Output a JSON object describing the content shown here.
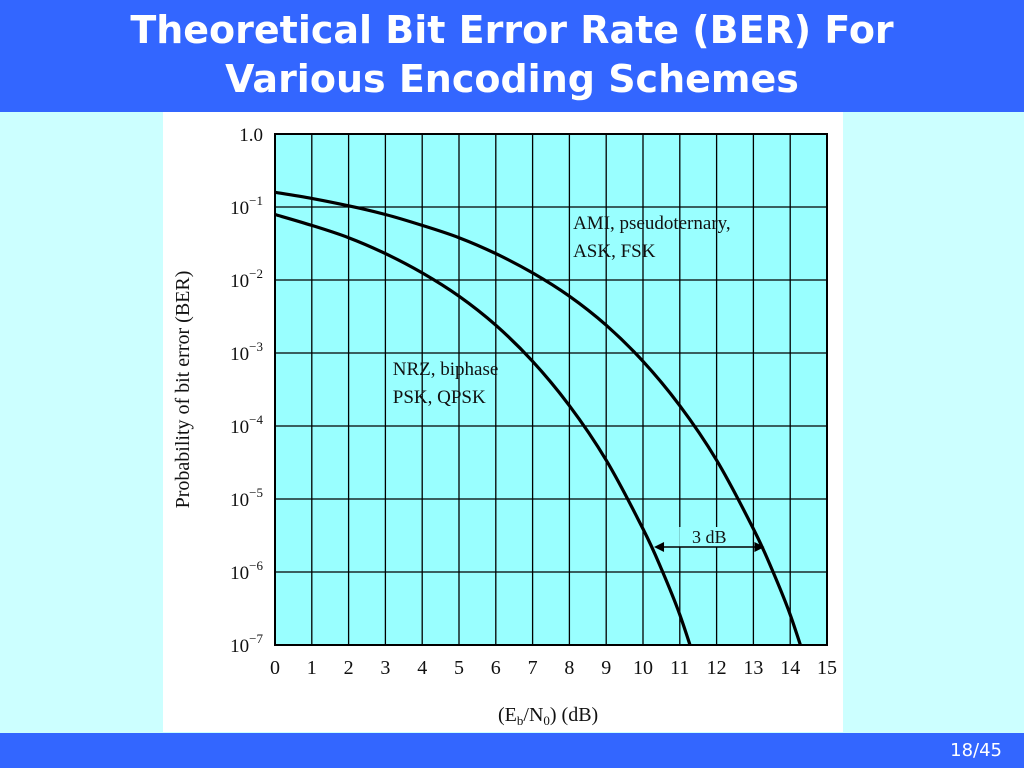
{
  "slide": {
    "title_line1": "Theoretical Bit Error Rate (BER) For",
    "title_line2": "Various Encoding Schemes",
    "page_number": "18/45"
  },
  "colors": {
    "title_bar": "#3366ff",
    "slide_background": "#ccffff",
    "plot_area": "#99ffff",
    "figure_background": "#ffffff",
    "curves": "#000000"
  },
  "chart_data": {
    "type": "line",
    "title": "",
    "xlabel": "(Eb/N0) (dB)",
    "xlabel_parts": {
      "open": "(E",
      "sub1": "b",
      "mid": "/N",
      "sub2": "0",
      "close": ") (dB)"
    },
    "ylabel": "Probability of bit error (BER)",
    "xlim": [
      0,
      15
    ],
    "ylim": [
      1e-07,
      1
    ],
    "y_scale": "log",
    "grid": true,
    "x_ticks": [
      "0",
      "1",
      "2",
      "3",
      "4",
      "5",
      "6",
      "7",
      "8",
      "9",
      "10",
      "11",
      "12",
      "13",
      "14",
      "15"
    ],
    "y_ticks": [
      {
        "value": 1,
        "label": "1.0",
        "base": "",
        "exp": ""
      },
      {
        "value": 0.1,
        "label": "",
        "base": "10",
        "exp": "−1"
      },
      {
        "value": 0.01,
        "label": "",
        "base": "10",
        "exp": "−2"
      },
      {
        "value": 0.001,
        "label": "",
        "base": "10",
        "exp": "−3"
      },
      {
        "value": 0.0001,
        "label": "",
        "base": "10",
        "exp": "−4"
      },
      {
        "value": 1e-05,
        "label": "",
        "base": "10",
        "exp": "−5"
      },
      {
        "value": 1e-06,
        "label": "",
        "base": "10",
        "exp": "−6"
      },
      {
        "value": 1e-07,
        "label": "",
        "base": "10",
        "exp": "−7"
      }
    ],
    "series": [
      {
        "label_lines": [
          "NRZ, biphase",
          "PSK, QPSK"
        ],
        "label_anchor": [
          3.2,
          0.0005
        ],
        "x": [
          0,
          1,
          2,
          3,
          4,
          5,
          6,
          7,
          8,
          9,
          10,
          10.5,
          11,
          11.5
        ],
        "y": [
          0.079,
          0.056,
          0.038,
          0.023,
          0.0125,
          0.006,
          0.0024,
          0.00077,
          0.00019,
          3.4e-05,
          3.9e-06,
          1.1e-06,
          2.6e-07,
          4.5e-08
        ]
      },
      {
        "label_lines": [
          "AMI, pseudoternary,",
          "ASK, FSK"
        ],
        "label_anchor": [
          8.1,
          0.05
        ],
        "x": [
          0,
          1,
          2,
          3,
          4,
          5,
          6,
          7,
          8,
          9,
          10,
          11,
          12,
          13,
          13.5,
          14,
          14.5
        ],
        "y": [
          0.159,
          0.131,
          0.104,
          0.079,
          0.056,
          0.038,
          0.023,
          0.0125,
          0.006,
          0.0024,
          0.00077,
          0.00019,
          3.4e-05,
          3.9e-06,
          1.1e-06,
          2.6e-07,
          4.5e-08
        ]
      }
    ],
    "annotation": {
      "text": "3 dB",
      "x_start": 10.3,
      "x_end": 13.3,
      "y": 2.2e-06
    }
  }
}
